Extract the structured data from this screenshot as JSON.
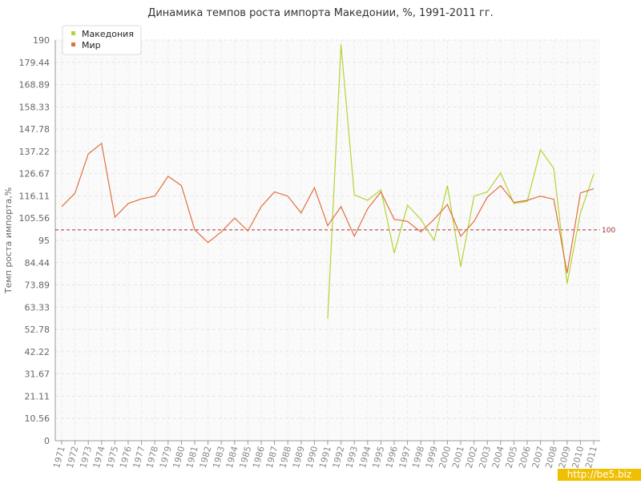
{
  "chart_data": {
    "type": "line",
    "title": "Динамика темпов роста импорта Македонии, %, 1991-2011 гг.",
    "y_label": "Темп роста импорта,%",
    "categories": [
      "1971",
      "1972",
      "1973",
      "1974",
      "1975",
      "1976",
      "1977",
      "1978",
      "1979",
      "1980",
      "1981",
      "1982",
      "1983",
      "1984",
      "1985",
      "1986",
      "1987",
      "1988",
      "1989",
      "1990",
      "1991",
      "1992",
      "1993",
      "1994",
      "1995",
      "1996",
      "1997",
      "1998",
      "1999",
      "2000",
      "2001",
      "2002",
      "2003",
      "2004",
      "2005",
      "2006",
      "2007",
      "2008",
      "2009",
      "2010",
      "2011"
    ],
    "series": [
      {
        "name": "Македония",
        "color": "#b5d334",
        "values": [
          null,
          null,
          null,
          null,
          null,
          null,
          null,
          null,
          null,
          null,
          null,
          null,
          null,
          null,
          null,
          null,
          null,
          null,
          null,
          null,
          57.7,
          188,
          116.6,
          114,
          119,
          89,
          111.7,
          105,
          95,
          121,
          82.5,
          116,
          118,
          127,
          112.5,
          113.5,
          138,
          129,
          74.5,
          108,
          126.5
        ]
      },
      {
        "name": "Мир",
        "color": "#e0703c",
        "values": [
          111,
          117.4,
          136,
          141,
          106,
          112.5,
          114.7,
          116,
          125.4,
          121,
          100,
          94,
          99,
          105.6,
          99.5,
          111,
          118,
          116,
          108,
          120,
          102,
          111,
          97,
          110,
          118,
          105,
          104,
          99,
          105,
          112,
          97,
          104,
          115.5,
          121,
          113,
          114,
          116,
          114.5,
          79.5,
          117.5,
          119.5
        ]
      }
    ],
    "ylim": [
      0,
      190
    ],
    "yticks": [
      0,
      10.56,
      21.11,
      31.67,
      42.22,
      52.78,
      63.33,
      73.89,
      84.44,
      95,
      105.56,
      116.11,
      126.67,
      137.22,
      147.78,
      158.33,
      168.89,
      179.44,
      190
    ],
    "reference_line": 100,
    "reference_color": "#a0303a",
    "grid": true,
    "legend": "top-left",
    "watermark": "http://be5.biz"
  }
}
